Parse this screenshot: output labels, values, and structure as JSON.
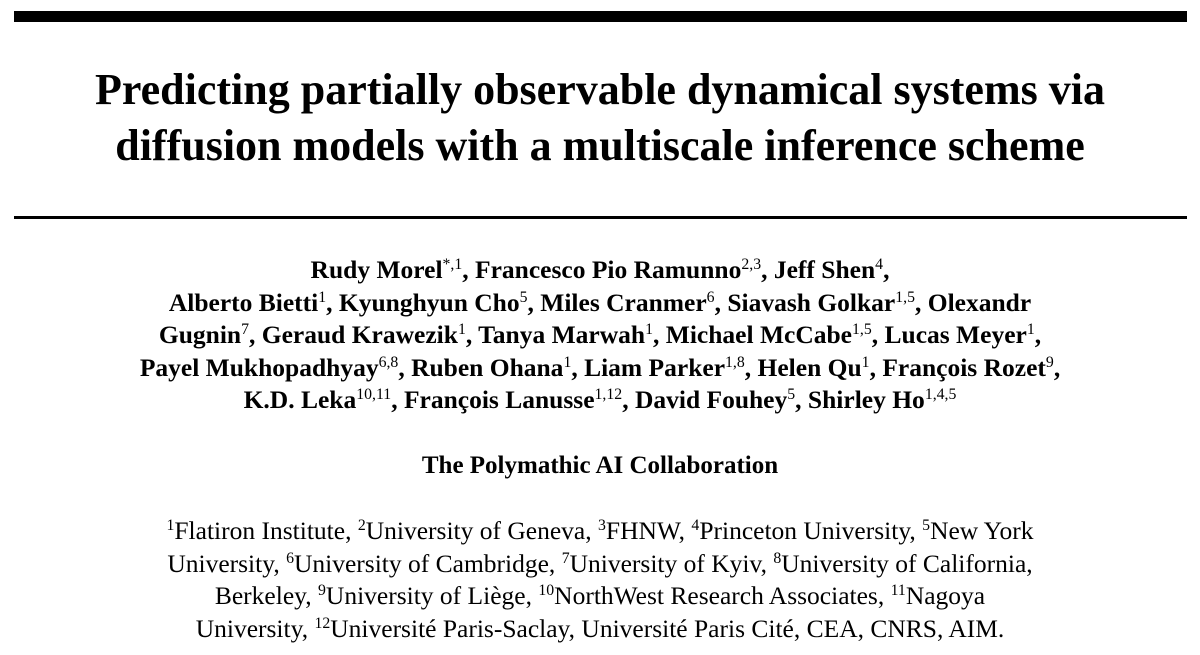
{
  "title_lines": [
    "Predicting partially observable dynamical systems via",
    "diffusion models with a multiscale inference scheme"
  ],
  "author_lines": [
    [
      {
        "name": "Rudy Morel",
        "sup": "*,1",
        "sep": ", "
      },
      {
        "name": "Francesco Pio Ramunno",
        "sup": "2,3",
        "sep": ", "
      },
      {
        "name": "Jeff Shen",
        "sup": "4",
        "sep": ","
      }
    ],
    [
      {
        "name": "Alberto Bietti",
        "sup": "1",
        "sep": ", "
      },
      {
        "name": "Kyunghyun Cho",
        "sup": "5",
        "sep": ", "
      },
      {
        "name": "Miles Cranmer",
        "sup": "6",
        "sep": ", "
      },
      {
        "name": "Siavash Golkar",
        "sup": "1,5",
        "sep": ", "
      },
      {
        "name": "Olexandr",
        "sup": "",
        "sep": ""
      }
    ],
    [
      {
        "name": "Gugnin",
        "sup": "7",
        "sep": ", "
      },
      {
        "name": "Geraud Krawezik",
        "sup": "1",
        "sep": ", "
      },
      {
        "name": "Tanya Marwah",
        "sup": "1",
        "sep": ", "
      },
      {
        "name": "Michael McCabe",
        "sup": "1,5",
        "sep": ", "
      },
      {
        "name": "Lucas Meyer",
        "sup": "1",
        "sep": ","
      }
    ],
    [
      {
        "name": "Payel Mukhopadhyay",
        "sup": "6,8",
        "sep": ", "
      },
      {
        "name": "Ruben Ohana",
        "sup": "1",
        "sep": ", "
      },
      {
        "name": "Liam Parker",
        "sup": "1,8",
        "sep": ", "
      },
      {
        "name": "Helen Qu",
        "sup": "1",
        "sep": ", "
      },
      {
        "name": "François Rozet",
        "sup": "9",
        "sep": ","
      }
    ],
    [
      {
        "name": "K.D. Leka",
        "sup": "10,11",
        "sep": ", "
      },
      {
        "name": "François Lanusse",
        "sup": "1,12",
        "sep": ", "
      },
      {
        "name": "David Fouhey",
        "sup": "5",
        "sep": ", "
      },
      {
        "name": "Shirley Ho",
        "sup": "1,4,5",
        "sep": ""
      }
    ]
  ],
  "collaboration": "The Polymathic AI Collaboration",
  "affiliation_lines": [
    [
      {
        "sup": "1",
        "text": "Flatiron Institute, "
      },
      {
        "sup": "2",
        "text": "University of Geneva, "
      },
      {
        "sup": "3",
        "text": "FHNW, "
      },
      {
        "sup": "4",
        "text": "Princeton University, "
      },
      {
        "sup": "5",
        "text": "New York"
      }
    ],
    [
      {
        "sup": "",
        "text": "University, "
      },
      {
        "sup": "6",
        "text": "University of Cambridge, "
      },
      {
        "sup": "7",
        "text": "University of Kyiv, "
      },
      {
        "sup": "8",
        "text": "University of California,"
      }
    ],
    [
      {
        "sup": "",
        "text": "Berkeley, "
      },
      {
        "sup": "9",
        "text": "University of Liège, "
      },
      {
        "sup": "10",
        "text": "NorthWest Research Associates, "
      },
      {
        "sup": "11",
        "text": "Nagoya"
      }
    ],
    [
      {
        "sup": "",
        "text": "University, "
      },
      {
        "sup": "12",
        "text": "Université Paris-Saclay, Université Paris Cité, CEA, CNRS, AIM."
      }
    ]
  ]
}
